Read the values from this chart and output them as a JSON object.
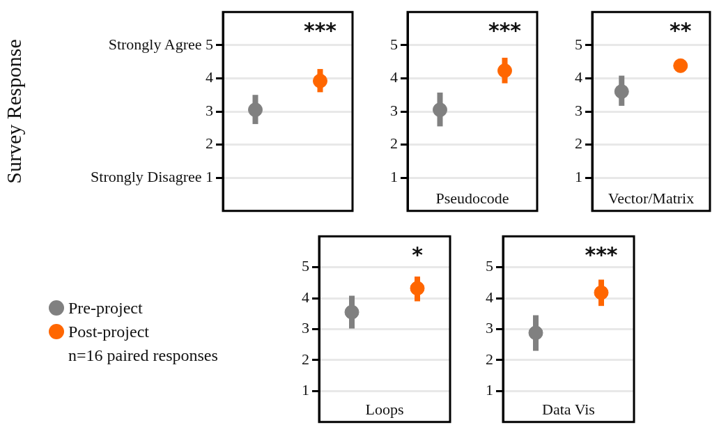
{
  "chart_data": [
    {
      "type": "scatter",
      "ylabel": "Survey Response",
      "categories": [
        null,
        null
      ],
      "ylim": [
        0,
        6
      ],
      "yticks": [
        {
          "value": 1,
          "label": "Strongly Disagree 1"
        },
        2,
        3,
        4,
        {
          "value": 5,
          "label": "Strongly Agree 5"
        }
      ],
      "grid": "y",
      "tick_labels": "y",
      "marker": "circle",
      "legend": false,
      "annotations": [
        "***"
      ],
      "series": [
        {
          "color": "#808080",
          "values": [
            3.05,
            null
          ],
          "errors": [
            [
              2.62,
              3.5
            ],
            null
          ]
        },
        {
          "color": "#ff6600",
          "values": [
            null,
            3.92
          ],
          "errors": [
            null,
            [
              3.58,
              4.28
            ]
          ]
        }
      ]
    },
    {
      "type": "scatter",
      "xlabel": "Pseudocode",
      "categories": [
        null,
        null
      ],
      "ylim": [
        0,
        6
      ],
      "yticks": [
        1,
        2,
        3,
        4,
        5
      ],
      "grid": "y",
      "tick_labels": "y",
      "marker": "circle",
      "legend": false,
      "annotations": [
        "***"
      ],
      "series": [
        {
          "color": "#808080",
          "values": [
            3.05,
            null
          ],
          "errors": [
            [
              2.55,
              3.57
            ],
            null
          ]
        },
        {
          "color": "#ff6600",
          "values": [
            null,
            4.23
          ],
          "errors": [
            null,
            [
              3.85,
              4.62
            ]
          ]
        }
      ]
    },
    {
      "type": "scatter",
      "xlabel": "Vector/Matrix",
      "categories": [
        null,
        null
      ],
      "ylim": [
        0,
        6
      ],
      "yticks": [
        1,
        2,
        3,
        4,
        5
      ],
      "grid": "y",
      "tick_labels": "y",
      "marker": "circle",
      "legend": false,
      "annotations": [
        "**"
      ],
      "series": [
        {
          "color": "#808080",
          "values": [
            3.6,
            null
          ],
          "errors": [
            [
              3.17,
              4.08
            ],
            null
          ]
        },
        {
          "color": "#ff6600",
          "values": [
            null,
            4.38
          ],
          "errors": [
            null,
            [
              4.23,
              4.55
            ]
          ]
        }
      ]
    },
    {
      "type": "scatter",
      "xlabel": "Loops",
      "categories": [
        null,
        null
      ],
      "ylim": [
        0,
        6
      ],
      "yticks": [
        1,
        2,
        3,
        4,
        5
      ],
      "grid": "y",
      "tick_labels": "y",
      "marker": "circle",
      "legend": "left",
      "annotations": [
        "*",
        "n=16 paired responses"
      ],
      "series": [
        {
          "name": "Pre-project",
          "color": "#808080",
          "values": [
            3.55,
            null
          ],
          "errors": [
            [
              3.02,
              4.08
            ],
            null
          ]
        },
        {
          "name": "Post-project",
          "color": "#ff6600",
          "values": [
            null,
            4.32
          ],
          "errors": [
            null,
            [
              3.9,
              4.7
            ]
          ]
        }
      ]
    },
    {
      "type": "scatter",
      "xlabel": "Data Vis",
      "categories": [
        null,
        null
      ],
      "ylim": [
        0,
        6
      ],
      "yticks": [
        1,
        2,
        3,
        4,
        5
      ],
      "grid": "y",
      "tick_labels": "y",
      "marker": "circle",
      "legend": false,
      "annotations": [
        "***"
      ],
      "series": [
        {
          "color": "#808080",
          "values": [
            2.88,
            null
          ],
          "errors": [
            [
              2.3,
              3.45
            ],
            null
          ]
        },
        {
          "color": "#ff6600",
          "values": [
            null,
            4.18
          ],
          "errors": [
            null,
            [
              3.75,
              4.6
            ]
          ]
        }
      ]
    }
  ]
}
